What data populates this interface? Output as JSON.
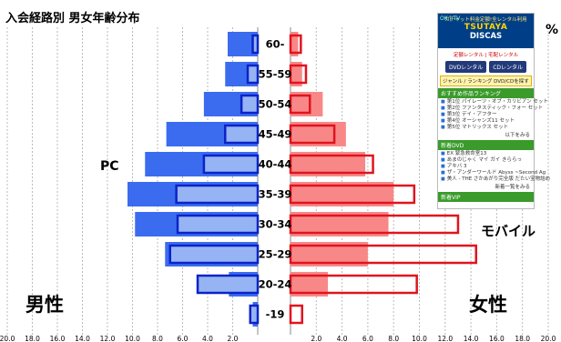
{
  "title": "入会経路別 男女年齢分布",
  "percent_sign": "%",
  "male_label": "男性",
  "female_label": "女性",
  "pc_label": "PC",
  "mobile_label": "モバイル",
  "colors": {
    "male_pc": "#3b6cf0",
    "male_mobile_fill": "#96b3f4",
    "male_mobile_border": "#0a23c8",
    "female_pc": "#f88888",
    "female_mobile_border": "#e0141e",
    "grid": "#bbbbbb"
  },
  "chart_data": {
    "type": "bar",
    "orientation": "horizontal-population-pyramid",
    "title": "入会経路別 男女年齢分布",
    "categories": [
      "60-",
      "55-59",
      "50-54",
      "45-49",
      "40-44",
      "35-39",
      "30-34",
      "25-29",
      "20-24",
      "-19"
    ],
    "xlim": [
      0,
      20
    ],
    "male_ticks": [
      "20.0",
      "18.0",
      "16.0",
      "14.0",
      "12.0",
      "10.0",
      "8.0",
      "6.0",
      "4.0",
      "2.0",
      ""
    ],
    "female_ticks": [
      "",
      "2.0",
      "4.0",
      "6.0",
      "8.0",
      "10.0",
      "12.0",
      "14.0",
      "16.0",
      "18.0",
      "20.0"
    ],
    "series": [
      {
        "name": "PC",
        "side": "男性",
        "values": [
          2.4,
          2.6,
          4.3,
          7.3,
          9.0,
          10.4,
          9.8,
          7.4,
          2.3,
          0.4
        ]
      },
      {
        "name": "モバイル",
        "side": "男性",
        "values": [
          0.4,
          0.8,
          1.3,
          2.6,
          4.3,
          6.5,
          6.4,
          7.0,
          4.8,
          0.6
        ]
      },
      {
        "name": "PC",
        "side": "女性",
        "values": [
          0.6,
          0.9,
          2.5,
          4.3,
          5.8,
          8.0,
          7.6,
          6.0,
          2.9,
          0.0
        ]
      },
      {
        "name": "モバイル",
        "side": "女性",
        "values": [
          0.8,
          1.2,
          1.5,
          3.4,
          6.4,
          9.6,
          13.0,
          14.4,
          9.8,
          0.9
        ]
      }
    ]
  },
  "ad": {
    "sub": "ガチャット料金定額!全レンタル利用",
    "brand1": "TSUTAYA",
    "brand2": "DISCAS",
    "icons": "OK | TV",
    "links": "定額レンタル | 宅配レンタル",
    "btn1": "DVDレンタル",
    "btn2": "CDレンタル",
    "search": "ジャンル / ランキング DVD/CDを探す",
    "bar1": "おすすめ作品ランキング",
    "items1": [
      "第1位 パイレーツ・オブ・カリビアン セット",
      "第2位 ファンタスティック・フォー セット",
      "第3位 デイ・アフター",
      "第4位 オーシャンズ11 セット",
      "第5位 マトリックス セット"
    ],
    "more1": "以下をみる",
    "bar2": "新着DVD",
    "items2": [
      "EX 緊急救命室13",
      "あまのじゃく マイ ガイ きららっ",
      "アキバ 3",
      "ザ・アンダーワールド Abyss ~Second Ag",
      "美人 - THE さかあがり完全版 だたい宝物詰め"
    ],
    "more2": "新着一覧をみる",
    "bar3": "新着VIP"
  }
}
